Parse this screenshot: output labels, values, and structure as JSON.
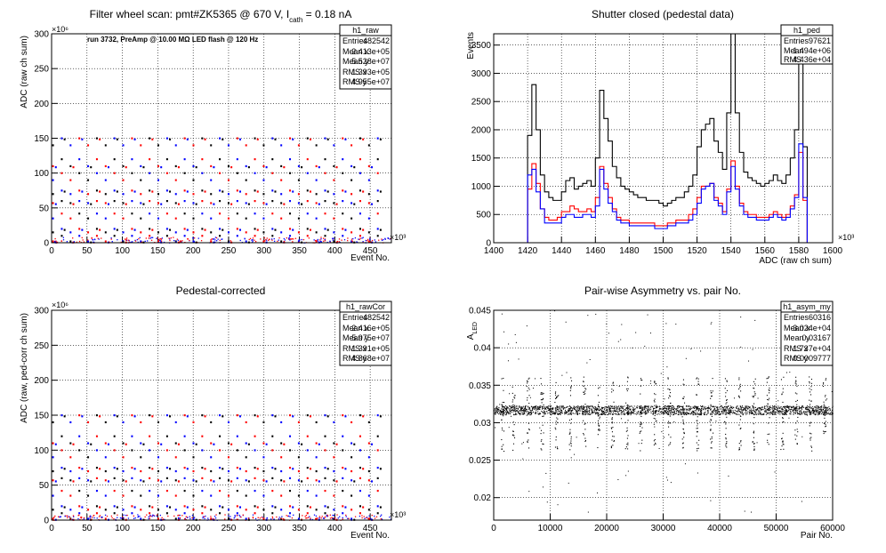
{
  "colors": {
    "frame": "#000000",
    "grid": "#000000",
    "red": "#ff0000",
    "blue": "#0000ff",
    "black": "#000000",
    "background": "#ffffff"
  },
  "chart_data": [
    {
      "id": "raw",
      "type": "scatter",
      "title": "Filter wheel scan: pmt#ZK5365 @   670 V, I",
      "title_sub": "cath",
      "title_tail": " = 0.18 nA",
      "annotation": "run 3732, PreAmp @ 10.00 MΩ LED flash @  120 Hz",
      "xlabel": "Event No.",
      "ylabel": "ADC (raw ch sum)",
      "x_multiplier": "×10³",
      "y_multiplier": "×10⁶",
      "xlim": [
        0,
        480
      ],
      "ylim": [
        0,
        300
      ],
      "xticks": [
        0,
        50,
        100,
        150,
        200,
        250,
        300,
        350,
        400,
        450
      ],
      "yticks": [
        0,
        50,
        100,
        150,
        200,
        250,
        300
      ],
      "grid": true,
      "levels": [
        2,
        10,
        15,
        20,
        35,
        42,
        57,
        60,
        70,
        75,
        90,
        100,
        110,
        120,
        140,
        150
      ],
      "stats": {
        "name": "h1_raw",
        "rows": [
          {
            "label": "Entries",
            "value": "482542"
          },
          {
            "label": "Mean x",
            "value": "2.413e+05"
          },
          {
            "label": "Mean y",
            "value": "5.528e+07"
          },
          {
            "label": "RMS x",
            "value": "1.393e+05"
          },
          {
            "label": "RMS y",
            "value": "4.955e+07"
          }
        ]
      }
    },
    {
      "id": "ped",
      "type": "histogram",
      "title": "Shutter closed (pedestal data)",
      "xlabel": "ADC (raw ch sum)",
      "ylabel": "Events",
      "x_multiplier": "×10³",
      "xlim": [
        1400,
        1600
      ],
      "ylim": [
        0,
        3700
      ],
      "xticks": [
        1400,
        1420,
        1440,
        1460,
        1480,
        1500,
        1520,
        1540,
        1560,
        1580,
        1600
      ],
      "yticks": [
        0,
        500,
        1000,
        1500,
        2000,
        2500,
        3000,
        3500
      ],
      "grid": true,
      "bins_start": 1420,
      "bin_width": 2.5,
      "series": [
        {
          "color": "black",
          "values": [
            1900,
            2800,
            2000,
            1200,
            900,
            800,
            750,
            750,
            900,
            1100,
            1150,
            950,
            1000,
            1050,
            1100,
            1000,
            1500,
            2700,
            2200,
            1800,
            1350,
            1150,
            1000,
            950,
            900,
            850,
            800,
            800,
            750,
            750,
            750,
            700,
            650,
            700,
            750,
            800,
            800,
            900,
            1000,
            1200,
            1700,
            2000,
            2100,
            2200,
            1800,
            1600,
            1300,
            2300,
            3700,
            2300,
            1600,
            1250,
            1150,
            1100,
            1050,
            1000,
            1050,
            1100,
            1200,
            1100,
            1050,
            1200,
            1500,
            2000,
            3500,
            1700
          ]
        },
        {
          "color": "red",
          "values": [
            950,
            1400,
            1050,
            600,
            450,
            400,
            400,
            450,
            550,
            550,
            650,
            600,
            550,
            550,
            600,
            550,
            800,
            1350,
            1050,
            800,
            600,
            450,
            400,
            400,
            350,
            350,
            350,
            350,
            350,
            350,
            300,
            300,
            300,
            350,
            350,
            400,
            400,
            400,
            500,
            600,
            800,
            1000,
            1000,
            1050,
            800,
            700,
            550,
            950,
            1450,
            1000,
            700,
            550,
            500,
            500,
            450,
            450,
            450,
            500,
            550,
            500,
            450,
            500,
            650,
            850,
            1600,
            750
          ]
        },
        {
          "color": "blue",
          "values": [
            1200,
            1300,
            900,
            600,
            350,
            350,
            350,
            350,
            450,
            500,
            500,
            450,
            450,
            500,
            500,
            450,
            650,
            1300,
            950,
            700,
            550,
            400,
            350,
            350,
            300,
            300,
            300,
            300,
            300,
            300,
            250,
            250,
            250,
            300,
            300,
            350,
            350,
            350,
            400,
            500,
            700,
            950,
            1000,
            1050,
            750,
            650,
            500,
            900,
            1350,
            950,
            650,
            500,
            450,
            450,
            400,
            400,
            400,
            450,
            500,
            450,
            400,
            450,
            600,
            800,
            1750,
            800
          ]
        }
      ],
      "stats": {
        "name": "h1_ped",
        "rows": [
          {
            "label": "Entries",
            "value": "97621"
          },
          {
            "label": "Mean",
            "value": "1.494e+06"
          },
          {
            "label": "RMS",
            "value": "4.436e+04"
          }
        ]
      }
    },
    {
      "id": "rawcor",
      "type": "scatter",
      "title": "Pedestal-corrected",
      "xlabel": "Event No.",
      "ylabel": "ADC (raw, ped-corr ch sum)",
      "x_multiplier": "×10³",
      "y_multiplier": "×10⁶",
      "xlim": [
        0,
        480
      ],
      "ylim": [
        0,
        300
      ],
      "xticks": [
        0,
        50,
        100,
        150,
        200,
        250,
        300,
        350,
        400,
        450
      ],
      "yticks": [
        0,
        50,
        100,
        150,
        200,
        250,
        300
      ],
      "grid": true,
      "levels": [
        2,
        10,
        15,
        20,
        35,
        42,
        57,
        60,
        70,
        75,
        90,
        100,
        110,
        120,
        140,
        150
      ],
      "stats": {
        "name": "h1_rawCor",
        "rows": [
          {
            "label": "Entries",
            "value": "482542"
          },
          {
            "label": "Mean x",
            "value": "2.416e+05"
          },
          {
            "label": "Mean y",
            "value": "5.975e+07"
          },
          {
            "label": "RMS x",
            "value": "1.391e+05"
          },
          {
            "label": "RMS y",
            "value": "4.868e+07"
          }
        ]
      }
    },
    {
      "id": "asym",
      "type": "scatter",
      "title": "Pair-wise Asymmetry vs. pair No.",
      "xlabel": "Pair No.",
      "ylabel": "A",
      "ylabel_sub": "LED",
      "xlim": [
        0,
        60000
      ],
      "ylim": [
        0.017,
        0.045
      ],
      "xticks": [
        0,
        10000,
        20000,
        30000,
        40000,
        50000,
        60000
      ],
      "yticks": [
        0.02,
        0.025,
        0.03,
        0.035,
        0.04,
        0.045
      ],
      "grid": true,
      "band_center": 0.0317,
      "band_halfwidth": 0.0006,
      "spike_positions": [
        1500,
        3500,
        6000,
        8500,
        11000,
        13500,
        16000,
        18500,
        21000,
        23500,
        26000,
        28500,
        31000,
        33500,
        36000,
        38500,
        41000,
        43500,
        46000,
        48500,
        51000,
        53500,
        56000,
        58500
      ],
      "stats": {
        "name": "h1_asym_my",
        "rows": [
          {
            "label": "Entries",
            "value": "60316"
          },
          {
            "label": "Mean x",
            "value": "3.024e+04"
          },
          {
            "label": "Mean y",
            "value": "0.03167"
          },
          {
            "label": "RMS x",
            "value": "1.737e+04"
          },
          {
            "label": "RMS y",
            "value": "0.0009777"
          }
        ]
      }
    }
  ]
}
